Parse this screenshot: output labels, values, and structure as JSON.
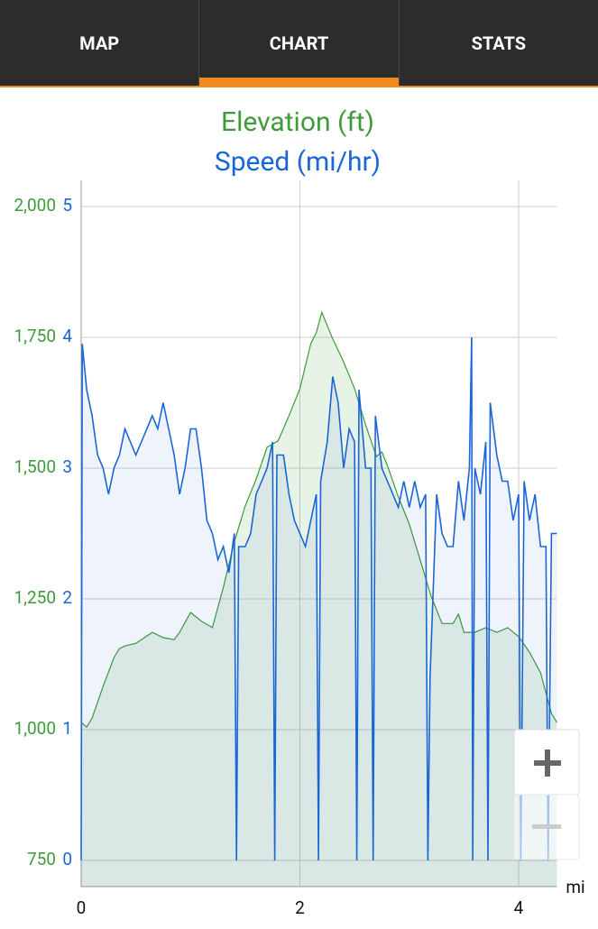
{
  "tabs": [
    "MAP",
    "CHART",
    "STATS"
  ],
  "chart_data": {
    "type": "line",
    "title": "Elevation (ft)",
    "subtitle": "Speed (mi/hr)",
    "x_label": "mi",
    "xlim": [
      0,
      4.35
    ],
    "xticks": [
      0,
      2,
      4
    ],
    "ylim": [
      -0.2,
      5.2
    ],
    "yticks": [
      0,
      1,
      2,
      3,
      4,
      5
    ],
    "y2lim": [
      700,
      2050
    ],
    "y2ticks": [
      750,
      {
        "value": 1000,
        "label": "1,000"
      },
      {
        "value": 1250,
        "label": "1,250"
      },
      {
        "value": 1500,
        "label": "1,500"
      },
      {
        "value": 1750,
        "label": "1,750"
      },
      {
        "value": 2000,
        "label": "2,000"
      }
    ],
    "grid": true,
    "series": [
      {
        "name": "Elevation (ft)",
        "color": "#3f9a3a",
        "axis": "y2",
        "x": [
          0,
          0.05,
          0.1,
          0.2,
          0.3,
          0.35,
          0.4,
          0.5,
          0.55,
          0.65,
          0.75,
          0.85,
          0.9,
          1.0,
          1.1,
          1.2,
          1.3,
          1.4,
          1.5,
          1.6,
          1.7,
          1.8,
          1.9,
          2.0,
          2.1,
          2.15,
          2.2,
          2.3,
          2.4,
          2.5,
          2.6,
          2.7,
          2.75,
          2.8,
          2.9,
          3.0,
          3.1,
          3.2,
          3.3,
          3.4,
          3.45,
          3.5,
          3.6,
          3.7,
          3.8,
          3.9,
          4.0,
          4.1,
          4.2,
          4.3,
          4.35
        ],
        "values": [
          1014,
          1005,
          1022,
          1083,
          1138,
          1155,
          1160,
          1165,
          1172,
          1186,
          1176,
          1172,
          1186,
          1224,
          1207,
          1195,
          1272,
          1359,
          1428,
          1479,
          1540,
          1552,
          1600,
          1652,
          1738,
          1759,
          1798,
          1747,
          1703,
          1652,
          1583,
          1522,
          1531,
          1505,
          1445,
          1393,
          1324,
          1255,
          1203,
          1203,
          1221,
          1186,
          1186,
          1195,
          1186,
          1195,
          1178,
          1148,
          1109,
          1031,
          1014
        ]
      },
      {
        "name": "Speed (mi/hr)",
        "color": "#1a66d6",
        "x": [
          0,
          0.01,
          0.05,
          0.1,
          0.15,
          0.2,
          0.25,
          0.3,
          0.35,
          0.4,
          0.45,
          0.5,
          0.55,
          0.6,
          0.65,
          0.7,
          0.75,
          0.8,
          0.85,
          0.9,
          0.95,
          1.0,
          1.05,
          1.1,
          1.15,
          1.2,
          1.25,
          1.3,
          1.35,
          1.4,
          1.42,
          1.44,
          1.5,
          1.55,
          1.6,
          1.65,
          1.7,
          1.75,
          1.77,
          1.79,
          1.85,
          1.9,
          1.95,
          2.0,
          2.05,
          2.1,
          2.15,
          2.17,
          2.19,
          2.25,
          2.3,
          2.35,
          2.4,
          2.45,
          2.5,
          2.52,
          2.54,
          2.6,
          2.65,
          2.67,
          2.69,
          2.75,
          2.8,
          2.85,
          2.9,
          2.95,
          3.0,
          3.05,
          3.1,
          3.15,
          3.17,
          3.19,
          3.25,
          3.3,
          3.35,
          3.4,
          3.45,
          3.5,
          3.55,
          3.57,
          3.58,
          3.6,
          3.65,
          3.7,
          3.72,
          3.74,
          3.8,
          3.85,
          3.9,
          3.95,
          4.0,
          4.02,
          4.05,
          4.1,
          4.15,
          4.2,
          4.25,
          4.27,
          4.3,
          4.35
        ],
        "values": [
          0,
          3.95,
          3.6,
          3.4,
          3.1,
          3.0,
          2.8,
          3.0,
          3.1,
          3.3,
          3.2,
          3.1,
          3.2,
          3.3,
          3.4,
          3.3,
          3.5,
          3.3,
          3.1,
          2.8,
          3.0,
          3.3,
          3.3,
          3.0,
          2.6,
          2.5,
          2.3,
          2.4,
          2.2,
          2.5,
          0,
          2.4,
          2.4,
          2.5,
          2.8,
          2.9,
          3.0,
          3.2,
          0,
          3.1,
          3.1,
          2.8,
          2.6,
          2.5,
          2.4,
          2.6,
          2.8,
          0,
          2.9,
          3.2,
          3.7,
          3.5,
          3.0,
          3.3,
          3.2,
          0,
          3.6,
          3.0,
          3.0,
          0,
          3.4,
          3.0,
          2.9,
          2.8,
          2.7,
          2.9,
          2.7,
          2.9,
          2.7,
          2.8,
          0,
          1.4,
          2.8,
          2.5,
          2.4,
          2.4,
          2.9,
          2.6,
          3.0,
          4.0,
          0,
          3.0,
          2.8,
          3.2,
          0,
          3.5,
          3.1,
          2.9,
          2.9,
          2.6,
          2.8,
          0,
          2.9,
          2.6,
          2.8,
          2.4,
          2.4,
          0,
          2.5,
          2.5
        ]
      }
    ]
  }
}
